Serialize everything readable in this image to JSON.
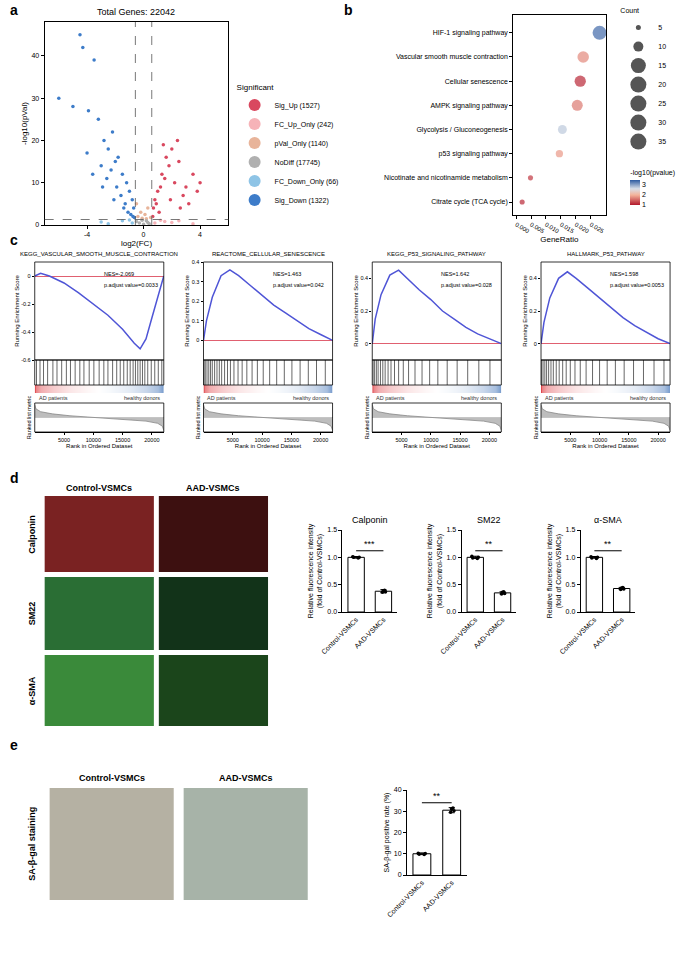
{
  "panel_labels": [
    "a",
    "b",
    "c",
    "d",
    "e"
  ],
  "image_panels": {
    "d": {
      "columns": [
        "Control-VSMCs",
        "AAD-VSMCs"
      ],
      "rows": [
        "Calponin",
        "SM22",
        "α-SMA"
      ]
    },
    "e": {
      "columns": [
        "Control-VSMCs",
        "AAD-VSMCs"
      ],
      "row": "SA-β-gal staining"
    }
  },
  "chart_data": [
    {
      "type": "volcano",
      "title": "Total Genes: 22042",
      "x_label": "log2(FC)",
      "y_label": "-log10(pVal)",
      "legend_title": "Significant",
      "xlim": [
        -7,
        6
      ],
      "xticks": [
        -4,
        0,
        4
      ],
      "ylim": [
        0,
        48
      ],
      "yticks": [
        0,
        10,
        20,
        30,
        40
      ],
      "vlines": [
        -0.58,
        0.58
      ],
      "hline": 1.3,
      "series": [
        {
          "name": "Sig_Up (1527)",
          "color": "#d9485f",
          "x": [
            3.5,
            3.0,
            2.5,
            2.0,
            1.8,
            1.5,
            1.2,
            1.0,
            0.8,
            0.7,
            2.8,
            2.2,
            1.6,
            1.3,
            0.9,
            3.8,
            3.2,
            2.6,
            1.9,
            1.1,
            0.65,
            4.0,
            2.4,
            1.4
          ],
          "values": [
            12,
            9,
            15,
            18,
            14,
            11,
            9,
            8,
            6,
            4,
            7,
            10,
            16,
            12,
            5,
            8,
            5,
            4,
            6,
            3,
            2,
            10,
            20,
            19
          ]
        },
        {
          "name": "FC_Up_Only (242)",
          "color": "#f6b3b8",
          "x": [
            0.8,
            1.5,
            2.5,
            3.5,
            1.2,
            2.0
          ],
          "values": [
            0.5,
            0.8,
            1.0,
            0.3,
            1.1,
            0.6
          ]
        },
        {
          "name": "pVal_Only (1140)",
          "color": "#e8b49a",
          "x": [
            -0.4,
            -0.2,
            0.1,
            0.3,
            0.5,
            -0.5,
            0.2,
            -0.1
          ],
          "values": [
            2,
            3,
            2.5,
            4,
            1.8,
            5,
            1.5,
            1.6
          ]
        },
        {
          "name": "NoDiff (17745)",
          "color": "#b0b0b0",
          "x": [
            -0.3,
            0,
            0.2,
            0.4,
            -0.5,
            -0.1,
            0.3
          ],
          "values": [
            0.5,
            0.2,
            1.0,
            0.3,
            0.8,
            1.1,
            0.6
          ]
        },
        {
          "name": "FC_Down_Only (66)",
          "color": "#8ec4e6",
          "x": [
            -0.8,
            -1.5,
            -2.5,
            -1.0,
            -3.0
          ],
          "values": [
            0.5,
            1.0,
            0.3,
            1.2,
            0.7
          ]
        },
        {
          "name": "Sig_Down (1322)",
          "color": "#3d7cc9",
          "x": [
            -4.5,
            -4.3,
            -3.5,
            -6.0,
            -3.9,
            -5.0,
            -3.2,
            -2.8,
            -2.5,
            -2.2,
            -2.0,
            -1.8,
            -1.5,
            -1.2,
            -1.0,
            -0.8,
            -0.7,
            -3.0,
            -2.6,
            -2.3,
            -1.9,
            -1.6,
            -1.3,
            -1.1,
            -0.9,
            -4.0,
            -3.6,
            -2.9,
            -2.1,
            -1.4,
            -0.75,
            -0.65
          ],
          "values": [
            45,
            42,
            39,
            30,
            27,
            28,
            25,
            20,
            18,
            22,
            15,
            16,
            12,
            10,
            8,
            6,
            4,
            14,
            11,
            13,
            9,
            7,
            5,
            3,
            2.5,
            17,
            12,
            9,
            6,
            4,
            2,
            1.8
          ]
        }
      ]
    },
    {
      "type": "dot",
      "x_label": "GeneRatio",
      "categories": [
        "HIF-1 signaling pathway",
        "Vascular smooth muscle contraction",
        "Cellular senescence",
        "AMPK signaling pathway",
        "Glycolysis / Gluconeogenesis",
        "p53 signaling pathway",
        "Nicotinate and nicotinamide metabolism",
        "Citrate cycle (TCA cycle)"
      ],
      "values": [
        0.028,
        0.0225,
        0.0215,
        0.0205,
        0.0155,
        0.0145,
        0.0048,
        0.002
      ],
      "counts": [
        37,
        25,
        24,
        23,
        15,
        10,
        5,
        5
      ],
      "neg_log10_pvalue": [
        3.3,
        1.7,
        1.1,
        1.6,
        2.7,
        1.8,
        1.2,
        1.1
      ],
      "xlim": [
        -0.001,
        0.03
      ],
      "xticks": [
        {
          "value": 0,
          "label": "0.000"
        },
        {
          "value": 0.005,
          "label": "0.005"
        },
        {
          "value": 0.01,
          "label": "0.010"
        },
        {
          "value": 0.015,
          "label": "0.015"
        },
        {
          "value": 0.02,
          "label": "0.020"
        },
        {
          "value": 0.025,
          "label": "0.025"
        }
      ],
      "size_title": "Count",
      "size_legend": [
        5,
        10,
        15,
        20,
        25,
        30,
        35
      ],
      "colorbar_title": "-log10(pvalue)",
      "color_range": [
        1.0,
        3.4
      ],
      "color_ticks": [
        1,
        2,
        3
      ]
    },
    {
      "type": "gsea",
      "title": "KEGG_VASCULAR_SMOOTH_MUSCLE_CONTRACTION",
      "annotations": [
        "NES=-2.069",
        "p.adjust value=0.0033"
      ],
      "y_label": "Running Enrichment Score",
      "metric_label": "Ranked list metric",
      "x_label": "Rank in Ordered Dataset",
      "groups": [
        "AD patients",
        "healthy donors"
      ],
      "xlim": [
        0,
        22042
      ],
      "xticks": [
        5000,
        10000,
        15000,
        20000
      ],
      "ylim": [
        -0.6,
        0.1
      ],
      "yticks": [
        -0.6,
        -0.4,
        -0.2,
        0
      ],
      "x": [
        0,
        1000,
        2500,
        5000,
        7500,
        10000,
        12500,
        15000,
        17000,
        18000,
        19000,
        20000,
        21000,
        22042
      ],
      "values": [
        0,
        0.02,
        0.0,
        -0.05,
        -0.12,
        -0.2,
        -0.28,
        -0.38,
        -0.48,
        -0.52,
        -0.45,
        -0.3,
        -0.15,
        0
      ],
      "hits": [
        300,
        900,
        1500,
        2200,
        3100,
        3800,
        4600,
        5400,
        6100,
        6900,
        7700,
        8400,
        9300,
        10100,
        11000,
        11800,
        12500,
        13300,
        14000,
        14600,
        15200,
        15800,
        16300,
        16800,
        17200,
        17600,
        18000,
        18400,
        18800,
        19300,
        19900,
        20500,
        21100,
        21700
      ],
      "metric": {
        "x": [
          0,
          200,
          1000,
          3000,
          6000,
          9000,
          11000,
          13000,
          16000,
          19000,
          21000,
          21800,
          22042
        ],
        "values": [
          0.9,
          0.6,
          0.4,
          0.25,
          0.12,
          0.04,
          0,
          -0.04,
          -0.12,
          -0.25,
          -0.4,
          -0.6,
          -0.9
        ],
        "ylim": [
          -1,
          1
        ]
      }
    },
    {
      "type": "gsea",
      "title": "REACTOME_CELLULAR_SENESCENCE",
      "annotations": [
        "NES=1.463",
        "p.adjust value=0.042"
      ],
      "y_label": "Running Enrichment Score",
      "metric_label": "Ranked list metric",
      "x_label": "Rank in Ordered Dataset",
      "groups": [
        "AD patients",
        "healthy donors"
      ],
      "xlim": [
        0,
        22042
      ],
      "xticks": [
        5000,
        10000,
        15000,
        20000
      ],
      "ylim": [
        -0.1,
        0.4
      ],
      "yticks": [
        0,
        0.1,
        0.2,
        0.3,
        0.4
      ],
      "x": [
        0,
        500,
        1500,
        3000,
        4500,
        6000,
        8000,
        10000,
        12000,
        14000,
        16000,
        18000,
        20000,
        22042
      ],
      "values": [
        0,
        0.1,
        0.22,
        0.33,
        0.36,
        0.33,
        0.28,
        0.23,
        0.18,
        0.14,
        0.1,
        0.06,
        0.03,
        0
      ],
      "hits": [
        100,
        300,
        600,
        900,
        1200,
        1500,
        1900,
        2300,
        2700,
        3100,
        3600,
        4100,
        4600,
        5200,
        5900,
        6600,
        7400,
        8300,
        9200,
        10200,
        11300,
        12500,
        13800,
        15100,
        16500,
        17900,
        19300,
        20800
      ],
      "metric": {
        "x": [
          0,
          200,
          1000,
          3000,
          6000,
          9000,
          11000,
          13000,
          16000,
          19000,
          21000,
          21800,
          22042
        ],
        "values": [
          0.9,
          0.6,
          0.4,
          0.25,
          0.12,
          0.04,
          0,
          -0.04,
          -0.12,
          -0.25,
          -0.4,
          -0.6,
          -0.9
        ],
        "ylim": [
          -1,
          1
        ]
      }
    },
    {
      "type": "gsea",
      "title": "KEGG_P53_SIGNALING_PATHWAY",
      "annotations": [
        "NES=1.642",
        "p.adjust value=0.028"
      ],
      "y_label": "Running Enrichment Score",
      "metric_label": "Ranked list metric",
      "x_label": "Rank in Ordered Dataset",
      "groups": [
        "AD patients",
        "healthy donors"
      ],
      "xlim": [
        0,
        22042
      ],
      "xticks": [
        5000,
        10000,
        15000,
        20000
      ],
      "ylim": [
        -0.1,
        0.5
      ],
      "yticks": [
        0,
        0.2,
        0.4
      ],
      "x": [
        0,
        500,
        1500,
        3000,
        4500,
        6000,
        8000,
        10000,
        12000,
        14000,
        16000,
        18000,
        20000,
        22042
      ],
      "values": [
        0,
        0.15,
        0.3,
        0.42,
        0.45,
        0.4,
        0.33,
        0.27,
        0.2,
        0.15,
        0.1,
        0.06,
        0.03,
        0
      ],
      "hits": [
        150,
        400,
        700,
        1000,
        1400,
        1800,
        2200,
        2700,
        3200,
        3800,
        4500,
        5300,
        6200,
        7300,
        8500,
        9800,
        11200,
        12800,
        14500,
        16300,
        18200,
        20100
      ],
      "metric": {
        "x": [
          0,
          200,
          1000,
          3000,
          6000,
          9000,
          11000,
          13000,
          16000,
          19000,
          21000,
          21800,
          22042
        ],
        "values": [
          0.9,
          0.6,
          0.4,
          0.25,
          0.12,
          0.04,
          0,
          -0.04,
          -0.12,
          -0.25,
          -0.4,
          -0.6,
          -0.9
        ],
        "ylim": [
          -1,
          1
        ]
      }
    },
    {
      "type": "gsea",
      "title": "HALLMARK_P53_PATHWAY",
      "annotations": [
        "NES=1.598",
        "p.adjust value=0.0053"
      ],
      "y_label": "Running Enrichment Score",
      "metric_label": "Ranked list metric",
      "x_label": "Rank in Ordered Dataset",
      "groups": [
        "AD patients",
        "healthy donors"
      ],
      "xlim": [
        0,
        22042
      ],
      "xticks": [
        5000,
        10000,
        15000,
        20000
      ],
      "ylim": [
        -0.1,
        0.5
      ],
      "yticks": [
        0,
        0.2,
        0.4
      ],
      "x": [
        0,
        500,
        1500,
        3000,
        4500,
        6000,
        8000,
        10000,
        12000,
        14000,
        16000,
        18000,
        20000,
        22042
      ],
      "values": [
        0,
        0.13,
        0.28,
        0.4,
        0.44,
        0.4,
        0.34,
        0.28,
        0.22,
        0.16,
        0.11,
        0.07,
        0.03,
        0
      ],
      "hits": [
        100,
        350,
        650,
        950,
        1300,
        1700,
        2100,
        2600,
        3100,
        3700,
        4300,
        5000,
        5800,
        6700,
        7700,
        8800,
        10000,
        11300,
        12700,
        14200,
        15800,
        17500,
        19300,
        21000
      ],
      "metric": {
        "x": [
          0,
          200,
          1000,
          3000,
          6000,
          9000,
          11000,
          13000,
          16000,
          19000,
          21000,
          21800,
          22042
        ],
        "values": [
          0.9,
          0.6,
          0.4,
          0.25,
          0.12,
          0.04,
          0,
          -0.04,
          -0.12,
          -0.25,
          -0.4,
          -0.6,
          -0.9
        ],
        "ylim": [
          -1,
          1
        ]
      }
    },
    {
      "type": "bar",
      "title": "Calponin",
      "y_label": [
        "Relative fluorescence intensity",
        "(fold of Control-VSMCs)"
      ],
      "categories": [
        "Control-VSMCs",
        "AAD-VSMCs"
      ],
      "values": [
        1.0,
        0.38
      ],
      "errors": [
        0.015,
        0.03
      ],
      "points": [
        [
          1.0,
          1.01,
          0.99,
          1.0
        ],
        [
          0.37,
          0.4,
          0.36,
          0.39
        ]
      ],
      "ylim": [
        0,
        1.5
      ],
      "yticks": [
        {
          "value": 0,
          "label": "0.0"
        },
        {
          "value": 0.5,
          "label": "0.5"
        },
        {
          "value": 1,
          "label": "1.0"
        },
        {
          "value": 1.5,
          "label": "1.5"
        }
      ],
      "significance": {
        "label": "***",
        "y": 1.12
      }
    },
    {
      "type": "bar",
      "title": "SM22",
      "y_label": [
        "Relative fluorescence intensity",
        "(fold of Control-VSMCs)"
      ],
      "categories": [
        "Control-VSMCs",
        "AAD-VSMCs"
      ],
      "values": [
        1.0,
        0.35
      ],
      "errors": [
        0.02,
        0.02
      ],
      "points": [
        [
          0.98,
          1.02,
          1.0,
          0.99
        ],
        [
          0.33,
          0.37,
          0.34,
          0.36
        ]
      ],
      "ylim": [
        0,
        1.5
      ],
      "yticks": [
        {
          "value": 0,
          "label": "0.0"
        },
        {
          "value": 0.5,
          "label": "0.5"
        },
        {
          "value": 1,
          "label": "1.0"
        },
        {
          "value": 1.5,
          "label": "1.5"
        }
      ],
      "significance": {
        "label": "**",
        "y": 1.12
      }
    },
    {
      "type": "bar",
      "title": "α-SMA",
      "y_label": [
        "Relative fluorescence intensity",
        "(fold of Control-VSMCs)"
      ],
      "categories": [
        "Control-VSMCs",
        "AAD-VSMCs"
      ],
      "values": [
        1.0,
        0.43
      ],
      "errors": [
        0.015,
        0.02
      ],
      "points": [
        [
          0.99,
          1.01,
          1.0,
          0.98
        ],
        [
          0.41,
          0.45,
          0.42,
          0.44
        ]
      ],
      "ylim": [
        0,
        1.5
      ],
      "yticks": [
        {
          "value": 0,
          "label": "0.0"
        },
        {
          "value": 0.5,
          "label": "0.5"
        },
        {
          "value": 1,
          "label": "1.0"
        },
        {
          "value": 1.5,
          "label": "1.5"
        }
      ],
      "significance": {
        "label": "**",
        "y": 1.12
      }
    },
    {
      "type": "bar",
      "y_label": [
        "SA-β-gal positive rate (%)"
      ],
      "categories": [
        "Control-VSMCs",
        "AAD-VSMCs"
      ],
      "values": [
        10,
        30.5
      ],
      "errors": [
        0.4,
        1.2
      ],
      "points": [
        [
          9.6,
          10.2,
          10.1,
          9.8
        ],
        [
          29.5,
          31.5,
          30.2,
          31.0
        ]
      ],
      "ylim": [
        0,
        40
      ],
      "yticks": [
        0,
        10,
        20,
        30,
        40
      ],
      "significance": {
        "label": "**",
        "y": 34
      }
    }
  ]
}
